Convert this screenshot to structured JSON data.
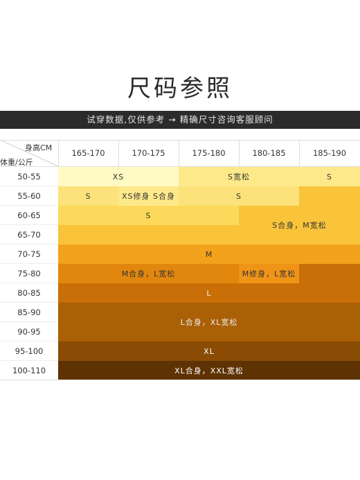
{
  "title": "尺码参照",
  "banner": "试穿数据,仅供参考 → 精确尺寸咨询客服顾问",
  "axis": {
    "height_label": "身高CM",
    "weight_label": "体重/公斤"
  },
  "columns": [
    "165-170",
    "170-175",
    "175-180",
    "180-185",
    "185-190"
  ],
  "rows": [
    "50-55",
    "55-60",
    "60-65",
    "65-70",
    "70-75",
    "75-80",
    "80-85",
    "85-90",
    "90-95",
    "95-100",
    "100-110"
  ],
  "cells": {
    "c1": "XS",
    "c2": "S宽松",
    "c3": "S",
    "c4": "S",
    "c5": "XS修身 S合身",
    "c6": "S",
    "c7": "S",
    "c8": "S合身，M宽松",
    "c9": "M",
    "c10": "M合身，L宽松",
    "c11": "M修身，L宽松",
    "c12": "L",
    "c13": "L合身，XL宽松",
    "c14": "XL",
    "c15": "XL合身，XXL宽松"
  },
  "colors": {
    "pale_yellow": "#fff9c4",
    "light_yellow": "#fde98a",
    "yellow": "#fcd95a",
    "gold": "#f9c33a",
    "amber": "#f3a21c",
    "orange": "#e2870e",
    "dark_orange": "#c96f07",
    "brown": "#a96006",
    "dark_brown": "#8a4c05",
    "darkest_brown": "#5e3202"
  }
}
